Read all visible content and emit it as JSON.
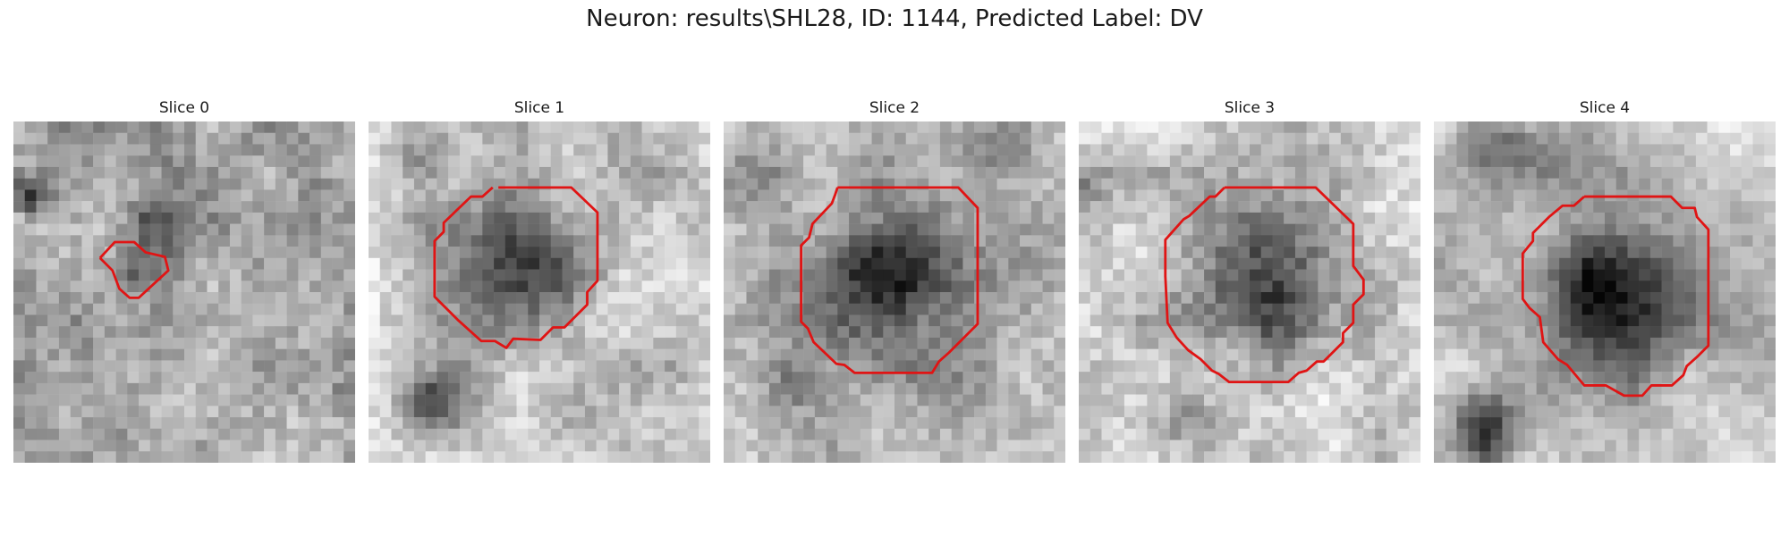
{
  "figure": {
    "title": "Neuron: results\\SHL28, ID: 1144, Predicted Label: DV",
    "outline_color": "#e01414"
  },
  "slices": [
    {
      "title": "Slice 0"
    },
    {
      "title": "Slice 1"
    },
    {
      "title": "Slice 2"
    },
    {
      "title": "Slice 3"
    },
    {
      "title": "Slice 4"
    }
  ]
}
